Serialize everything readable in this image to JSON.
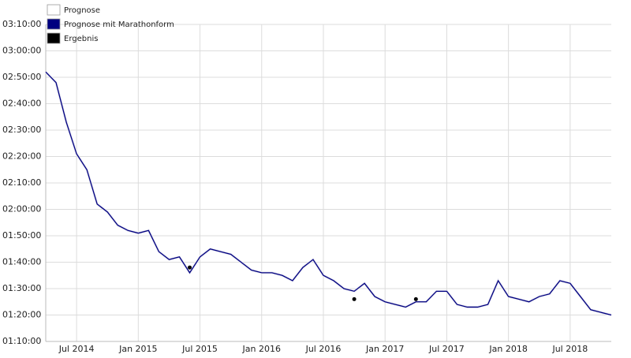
{
  "chart_data": {
    "type": "line",
    "ylim": [
      70,
      190
    ],
    "yticks": [
      {
        "value": 70,
        "label": "01:10:00"
      },
      {
        "value": 80,
        "label": "01:20:00"
      },
      {
        "value": 90,
        "label": "01:30:00"
      },
      {
        "value": 100,
        "label": "01:40:00"
      },
      {
        "value": 110,
        "label": "01:50:00"
      },
      {
        "value": 120,
        "label": "02:00:00"
      },
      {
        "value": 130,
        "label": "02:10:00"
      },
      {
        "value": 140,
        "label": "02:20:00"
      },
      {
        "value": 150,
        "label": "02:30:00"
      },
      {
        "value": 160,
        "label": "02:40:00"
      },
      {
        "value": 170,
        "label": "02:50:00"
      },
      {
        "value": 180,
        "label": "03:00:00"
      },
      {
        "value": 190,
        "label": "03:10:00"
      }
    ],
    "xlim": [
      "2014-04",
      "2018-11"
    ],
    "xticks": [
      {
        "value": "2014-07",
        "label": "Jul 2014"
      },
      {
        "value": "2015-01",
        "label": "Jan 2015"
      },
      {
        "value": "2015-07",
        "label": "Jul 2015"
      },
      {
        "value": "2016-01",
        "label": "Jan 2016"
      },
      {
        "value": "2016-07",
        "label": "Jul 2016"
      },
      {
        "value": "2017-01",
        "label": "Jan 2017"
      },
      {
        "value": "2017-07",
        "label": "Jul 2017"
      },
      {
        "value": "2018-01",
        "label": "Jan 2018"
      },
      {
        "value": "2018-07",
        "label": "Jul 2018"
      }
    ],
    "grid": true,
    "legend": "top-left",
    "x": [
      "2014-04",
      "2014-05",
      "2014-06",
      "2014-07",
      "2014-08",
      "2014-09",
      "2014-10",
      "2014-11",
      "2014-12",
      "2015-01",
      "2015-02",
      "2015-03",
      "2015-04",
      "2015-05",
      "2015-06",
      "2015-07",
      "2015-08",
      "2015-09",
      "2015-10",
      "2015-11",
      "2015-12",
      "2016-01",
      "2016-02",
      "2016-03",
      "2016-04",
      "2016-05",
      "2016-06",
      "2016-07",
      "2016-08",
      "2016-09",
      "2016-10",
      "2016-11",
      "2016-12",
      "2017-01",
      "2017-02",
      "2017-03",
      "2017-04",
      "2017-05",
      "2017-06",
      "2017-07",
      "2017-08",
      "2017-09",
      "2017-10",
      "2017-11",
      "2017-12",
      "2018-01",
      "2018-02",
      "2018-03",
      "2018-04",
      "2018-05",
      "2018-06",
      "2018-07",
      "2018-08",
      "2018-09",
      "2018-10",
      "2018-11"
    ],
    "series": [
      {
        "name": "Prognose",
        "color": "#ffffff",
        "kind": "line",
        "values": [
          172,
          168,
          153,
          141,
          135,
          122,
          119,
          114,
          112,
          111,
          112,
          104,
          101,
          102,
          96,
          102,
          105,
          104,
          103,
          100,
          97,
          96,
          96,
          95,
          93,
          98,
          101,
          95,
          93,
          90,
          89,
          92,
          87,
          85,
          84,
          83,
          85,
          85,
          89,
          89,
          84,
          83,
          83,
          84,
          93,
          87,
          86,
          85,
          87,
          88,
          93,
          92,
          87,
          82,
          81,
          80
        ]
      },
      {
        "name": "Prognose mit Marathonform",
        "color": "#000080",
        "kind": "line",
        "values": [
          172,
          168,
          153,
          141,
          135,
          122,
          119,
          114,
          112,
          111,
          112,
          104,
          101,
          102,
          96,
          102,
          105,
          104,
          103,
          100,
          97,
          96,
          96,
          95,
          93,
          98,
          101,
          95,
          93,
          90,
          89,
          92,
          87,
          85,
          84,
          83,
          85,
          85,
          89,
          89,
          84,
          83,
          83,
          84,
          93,
          87,
          86,
          85,
          87,
          88,
          93,
          92,
          87,
          82,
          81,
          80
        ]
      },
      {
        "name": "Ergebnis",
        "color": "#000000",
        "kind": "points",
        "x": [
          "2015-06",
          "2016-10",
          "2017-04"
        ],
        "values": [
          98,
          86,
          86
        ]
      }
    ]
  }
}
